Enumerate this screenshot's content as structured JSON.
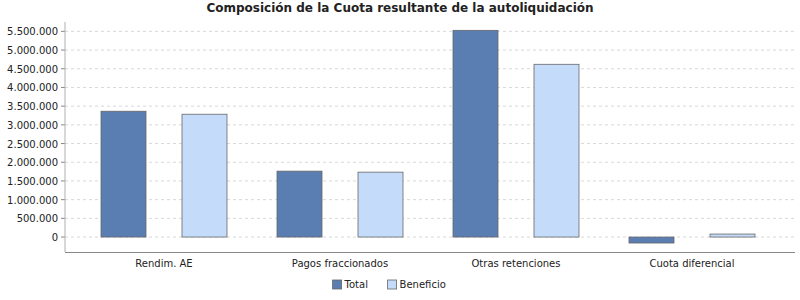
{
  "chart_data": {
    "type": "bar",
    "title": "Composición de la Cuota resultante de la autoliquidación",
    "categories": [
      "Rendim. AE",
      "Pagos fraccionados",
      "Otras retenciones",
      "Cuota diferencial"
    ],
    "series": [
      {
        "name": "Total",
        "color": "#5a7db2",
        "values": [
          3364000,
          1762000,
          5527000,
          -160000
        ]
      },
      {
        "name": "Beneficio",
        "color": "#c4dcfa",
        "values": [
          3284000,
          1735000,
          4619000,
          80000
        ]
      }
    ],
    "ylim": [
      -400000,
      5750000
    ],
    "yticks": [
      0,
      {
        "value": 500000,
        "label": "500.000"
      },
      {
        "value": 1000000,
        "label": "1.000.000"
      },
      {
        "value": 1500000,
        "label": "1.500.000"
      },
      {
        "value": 2000000,
        "label": "2.000.000"
      },
      {
        "value": 2500000,
        "label": "2.500.000"
      },
      {
        "value": 3000000,
        "label": "3.000.000"
      },
      {
        "value": 3500000,
        "label": "3.500.000"
      },
      {
        "value": 4000000,
        "label": "4.000.000"
      },
      {
        "value": 4500000,
        "label": "4.500.000"
      },
      {
        "value": 5000000,
        "label": "5.000.000"
      },
      {
        "value": 5500000,
        "label": "5.500.000"
      }
    ],
    "grid": true,
    "legend": "bottom"
  }
}
